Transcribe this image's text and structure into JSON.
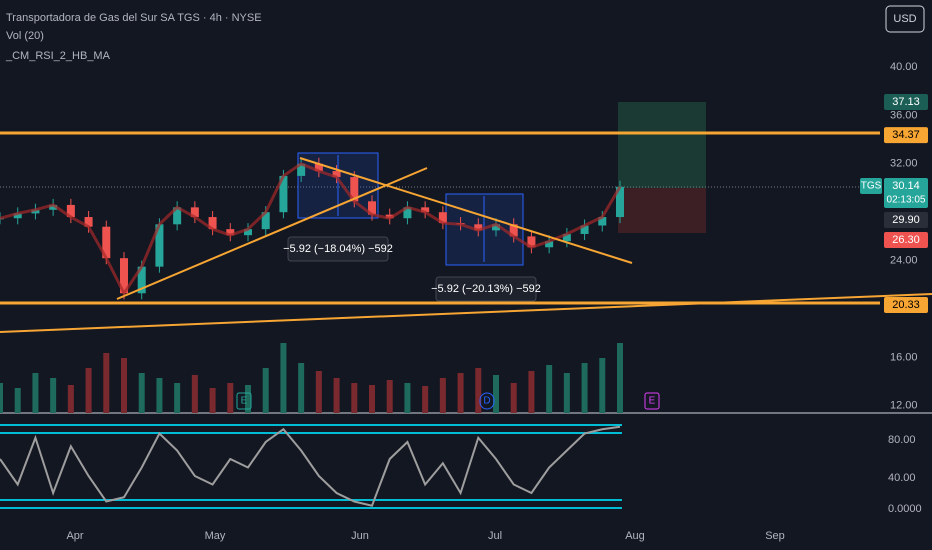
{
  "header": {
    "title": "Transportadora de Gas del Sur SA TGS · 4h · NYSE",
    "indicator_1": "Vol (20)",
    "indicator_2": "_CM_RSI_2_HB_MA"
  },
  "currency_button": "USD",
  "price_axis": [
    "40.00",
    "36.00",
    "32.00",
    "24.00",
    "16.00",
    "12.00"
  ],
  "badges": {
    "target": "37.13",
    "level_high": "34.37",
    "symbol": "TGS",
    "last": "30.14",
    "countdown": "02:13:05",
    "entry": "29.90",
    "stop": "26.30",
    "level_low": "20.33"
  },
  "measure_labels": [
    "−5.92 (−18.04%) −592",
    "−5.92 (−20.13%) −592"
  ],
  "events": [
    "E",
    "D",
    "E"
  ],
  "oscillator_axis": [
    "80.00",
    "40.00",
    "0.0000"
  ],
  "time_axis": [
    "Apr",
    "May",
    "Jun",
    "Jul",
    "Aug",
    "Sep"
  ],
  "closes": [
    27.5,
    27.9,
    28.2,
    28.6,
    27.6,
    26.8,
    24.2,
    21.3,
    23.5,
    27.0,
    28.4,
    27.6,
    26.6,
    26.1,
    26.6,
    28.0,
    31.0,
    32.0,
    31.4,
    30.9,
    28.9,
    27.8,
    27.5,
    28.4,
    28.0,
    27.1,
    27.0,
    26.5,
    27.0,
    26.0,
    25.1,
    25.6,
    26.2,
    26.9,
    27.6,
    30.1
  ],
  "volume": [
    30,
    25,
    40,
    35,
    28,
    45,
    60,
    55,
    40,
    35,
    30,
    38,
    25,
    30,
    28,
    45,
    70,
    50,
    42,
    35,
    30,
    28,
    33,
    30,
    27,
    35,
    40,
    45,
    38,
    30,
    42,
    48,
    40,
    50,
    55,
    70
  ],
  "rsi": [
    60,
    30,
    85,
    20,
    75,
    40,
    10,
    15,
    50,
    90,
    70,
    40,
    30,
    60,
    50,
    80,
    95,
    70,
    40,
    20,
    10,
    5,
    60,
    80,
    30,
    55,
    20,
    85,
    60,
    30,
    20,
    50,
    70,
    90,
    95,
    98
  ]
}
